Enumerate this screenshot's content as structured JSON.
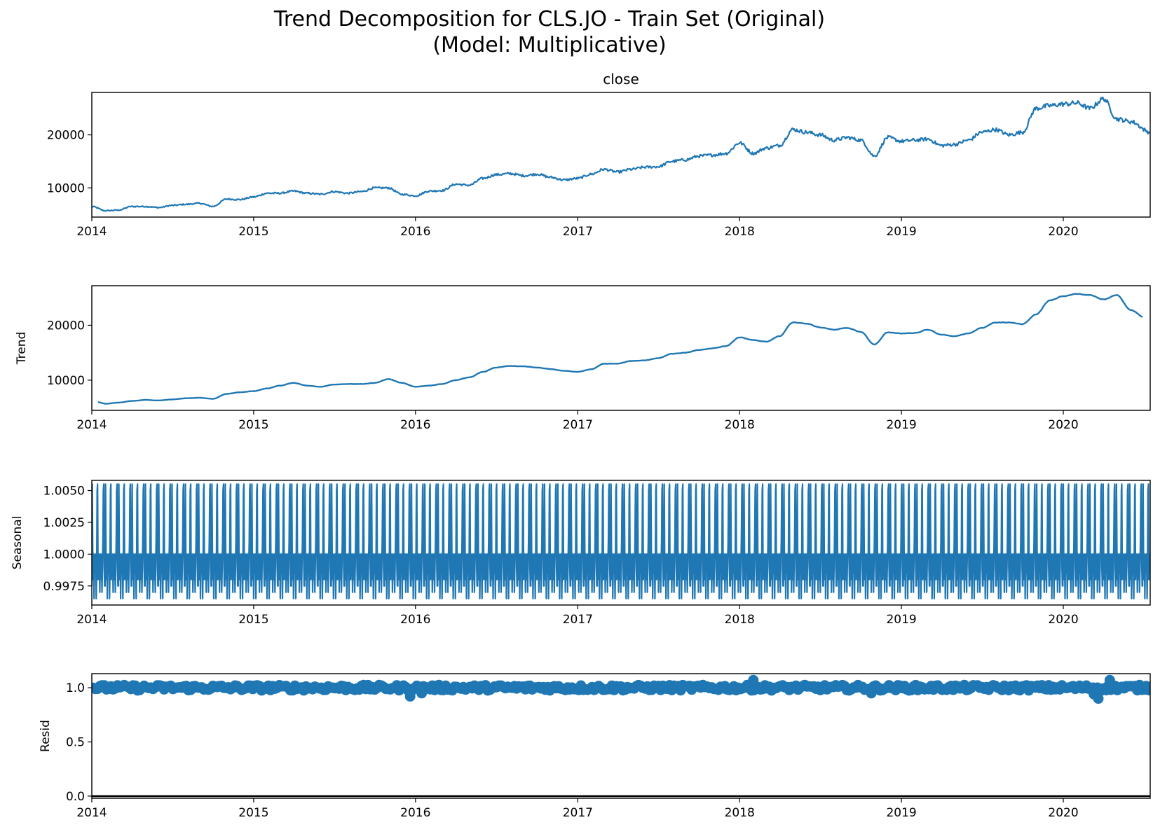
{
  "figure": {
    "title_line1": "Trend Decomposition for CLS.JO - Train Set (Original)",
    "title_line2": "(Model: Multiplicative)"
  },
  "colors": {
    "series": "#1f77b4",
    "axis": "#000000",
    "zero_line": "#000000"
  },
  "chart_data": [
    {
      "type": "line",
      "title": "close",
      "ylabel": "",
      "xlim": [
        "2014-01-01",
        "2020-07-15"
      ],
      "ylim": [
        4500,
        28000
      ],
      "xticks": [
        "2014",
        "2015",
        "2016",
        "2017",
        "2018",
        "2019",
        "2020"
      ],
      "yticks": [
        10000,
        20000
      ],
      "series": [
        {
          "x": [
            "2014-01-01",
            "2014-02-01",
            "2014-03-01",
            "2014-04-01",
            "2014-05-01",
            "2014-06-01",
            "2014-07-01",
            "2014-08-01",
            "2014-09-01",
            "2014-10-01",
            "2014-11-01",
            "2014-12-01",
            "2015-01-01",
            "2015-02-01",
            "2015-03-01",
            "2015-04-01",
            "2015-05-01",
            "2015-06-01",
            "2015-07-01",
            "2015-08-01",
            "2015-09-01",
            "2015-10-01",
            "2015-11-01",
            "2015-12-01",
            "2016-01-01",
            "2016-02-01",
            "2016-03-01",
            "2016-04-01",
            "2016-05-01",
            "2016-06-01",
            "2016-07-01",
            "2016-08-01",
            "2016-09-01",
            "2016-10-01",
            "2016-11-01",
            "2016-12-01",
            "2017-01-01",
            "2017-02-01",
            "2017-03-01",
            "2017-04-01",
            "2017-05-01",
            "2017-06-01",
            "2017-07-01",
            "2017-08-01",
            "2017-09-01",
            "2017-10-01",
            "2017-11-01",
            "2017-12-01",
            "2018-01-01",
            "2018-02-01",
            "2018-03-01",
            "2018-04-01",
            "2018-05-01",
            "2018-06-01",
            "2018-07-01",
            "2018-08-01",
            "2018-09-01",
            "2018-10-01",
            "2018-11-01",
            "2018-12-01",
            "2019-01-01",
            "2019-02-01",
            "2019-03-01",
            "2019-04-01",
            "2019-05-01",
            "2019-06-01",
            "2019-07-01",
            "2019-08-01",
            "2019-09-01",
            "2019-10-01",
            "2019-11-01",
            "2019-12-01",
            "2020-01-01",
            "2020-02-01",
            "2020-03-01",
            "2020-04-01",
            "2020-05-01",
            "2020-06-01",
            "2020-07-15"
          ],
          "y": [
            6500,
            5700,
            5800,
            6500,
            6500,
            6300,
            6700,
            6900,
            7100,
            6500,
            7900,
            7800,
            8300,
            9000,
            9000,
            9400,
            9000,
            8800,
            9300,
            9000,
            9300,
            10000,
            10000,
            8800,
            8500,
            9400,
            9500,
            10700,
            10500,
            11800,
            12500,
            12700,
            12300,
            12600,
            12000,
            11500,
            11800,
            12600,
            13500,
            13000,
            13500,
            13900,
            14000,
            15000,
            15300,
            16000,
            16200,
            16500,
            18500,
            16500,
            17500,
            18000,
            21000,
            20500,
            20000,
            19000,
            19500,
            19000,
            16000,
            19500,
            18800,
            19000,
            19200,
            18000,
            18200,
            19000,
            20500,
            21000,
            20000,
            20500,
            25000,
            25500,
            25800,
            26000,
            25000,
            26800,
            23000,
            22500,
            20500
          ]
        }
      ]
    },
    {
      "type": "line",
      "title": "",
      "ylabel": "Trend",
      "xlim": [
        "2014-01-01",
        "2020-07-15"
      ],
      "ylim": [
        4500,
        27200
      ],
      "xticks": [
        "2014",
        "2015",
        "2016",
        "2017",
        "2018",
        "2019",
        "2020"
      ],
      "yticks": [
        10000,
        20000
      ],
      "series": [
        {
          "x": [
            "2014-01-15",
            "2014-02-01",
            "2014-03-01",
            "2014-04-01",
            "2014-05-01",
            "2014-06-01",
            "2014-07-01",
            "2014-08-01",
            "2014-09-01",
            "2014-10-01",
            "2014-11-01",
            "2014-12-01",
            "2015-01-01",
            "2015-02-01",
            "2015-03-01",
            "2015-04-01",
            "2015-05-01",
            "2015-06-01",
            "2015-07-01",
            "2015-08-01",
            "2015-09-01",
            "2015-10-01",
            "2015-11-01",
            "2015-12-01",
            "2016-01-01",
            "2016-02-01",
            "2016-03-01",
            "2016-04-01",
            "2016-05-01",
            "2016-06-01",
            "2016-07-01",
            "2016-08-01",
            "2016-09-01",
            "2016-10-01",
            "2016-11-01",
            "2016-12-01",
            "2017-01-01",
            "2017-02-01",
            "2017-03-01",
            "2017-04-01",
            "2017-05-01",
            "2017-06-01",
            "2017-07-01",
            "2017-08-01",
            "2017-09-01",
            "2017-10-01",
            "2017-11-01",
            "2017-12-01",
            "2018-01-01",
            "2018-02-01",
            "2018-03-01",
            "2018-04-01",
            "2018-05-01",
            "2018-06-01",
            "2018-07-01",
            "2018-08-01",
            "2018-09-01",
            "2018-10-01",
            "2018-11-01",
            "2018-12-01",
            "2019-01-01",
            "2019-02-01",
            "2019-03-01",
            "2019-04-01",
            "2019-05-01",
            "2019-06-01",
            "2019-07-01",
            "2019-08-01",
            "2019-09-01",
            "2019-10-01",
            "2019-11-01",
            "2019-12-01",
            "2020-01-01",
            "2020-02-01",
            "2020-03-01",
            "2020-04-01",
            "2020-05-01",
            "2020-06-01",
            "2020-07-01"
          ],
          "y": [
            6000,
            5700,
            5900,
            6200,
            6400,
            6300,
            6500,
            6700,
            6800,
            6600,
            7500,
            7800,
            8000,
            8500,
            9000,
            9500,
            9000,
            8800,
            9200,
            9300,
            9300,
            9500,
            10200,
            9500,
            8800,
            9000,
            9300,
            10000,
            10500,
            11500,
            12300,
            12600,
            12500,
            12300,
            12000,
            11700,
            11500,
            12000,
            13000,
            13000,
            13500,
            13600,
            14000,
            14800,
            15000,
            15500,
            15800,
            16200,
            17800,
            17300,
            17000,
            18000,
            20500,
            20300,
            19600,
            19200,
            19500,
            18800,
            16500,
            18700,
            18500,
            18600,
            19200,
            18300,
            18000,
            18500,
            19500,
            20500,
            20500,
            20200,
            22000,
            24500,
            25300,
            25700,
            25500,
            24700,
            25500,
            22800,
            21500
          ]
        }
      ]
    },
    {
      "type": "line",
      "title": "",
      "ylabel": "Seasonal",
      "xlim": [
        "2014-01-01",
        "2020-07-15"
      ],
      "ylim": [
        0.996,
        1.0058
      ],
      "xticks": [
        "2014",
        "2015",
        "2016",
        "2017",
        "2018",
        "2019",
        "2020"
      ],
      "yticks": [
        "0.9975",
        "1.0000",
        "1.0025",
        "1.0050"
      ],
      "period_days": 30,
      "cycle": [
        0.9975,
        1.0055,
        1.0,
        0.998,
        1.0,
        0.9965,
        0.999,
        1.0,
        0.9985,
        1.0,
        0.9965,
        0.999,
        1.005,
        1.0055,
        0.998,
        1.0,
        0.9985,
        1.0,
        0.997,
        0.999,
        1.0,
        0.998,
        1.0,
        0.997,
        0.999,
        1.001,
        1.005,
        1.0055,
        0.999,
        0.9975
      ],
      "series": [
        {
          "name": ""
        }
      ]
    },
    {
      "type": "scatter",
      "title": "",
      "ylabel": "Resid",
      "xlim": [
        "2014-01-01",
        "2020-07-15"
      ],
      "ylim": [
        -0.02,
        1.13
      ],
      "xticks": [
        "2014",
        "2015",
        "2016",
        "2017",
        "2018",
        "2019",
        "2020"
      ],
      "yticks": [
        "0.0",
        "0.5",
        "1.0"
      ],
      "zero_line": 0.0,
      "center": 1.0,
      "spread": 0.025,
      "outliers": [
        {
          "x": "2015-12-20",
          "y": 0.92
        },
        {
          "x": "2016-01-15",
          "y": 0.95
        },
        {
          "x": "2018-10-25",
          "y": 0.95
        },
        {
          "x": "2020-03-20",
          "y": 0.9
        },
        {
          "x": "2020-03-10",
          "y": 0.94
        },
        {
          "x": "2018-02-01",
          "y": 1.07
        },
        {
          "x": "2020-04-15",
          "y": 1.07
        }
      ]
    }
  ],
  "panels": [
    {
      "title": "close",
      "ylabel": "",
      "xtick_labels": [
        "2014",
        "2015",
        "2016",
        "2017",
        "2018",
        "2019",
        "2020"
      ],
      "ytick_labels": [
        "10000",
        "20000"
      ]
    },
    {
      "title": "",
      "ylabel": "Trend",
      "xtick_labels": [
        "2014",
        "2015",
        "2016",
        "2017",
        "2018",
        "2019",
        "2020"
      ],
      "ytick_labels": [
        "10000",
        "20000"
      ]
    },
    {
      "title": "",
      "ylabel": "Seasonal",
      "xtick_labels": [
        "2014",
        "2015",
        "2016",
        "2017",
        "2018",
        "2019",
        "2020"
      ],
      "ytick_labels": [
        "0.9975",
        "1.0000",
        "1.0025",
        "1.0050"
      ]
    },
    {
      "title": "",
      "ylabel": "Resid",
      "xtick_labels": [
        "2014",
        "2015",
        "2016",
        "2017",
        "2018",
        "2019",
        "2020"
      ],
      "ytick_labels": [
        "0.0",
        "0.5",
        "1.0"
      ]
    }
  ]
}
